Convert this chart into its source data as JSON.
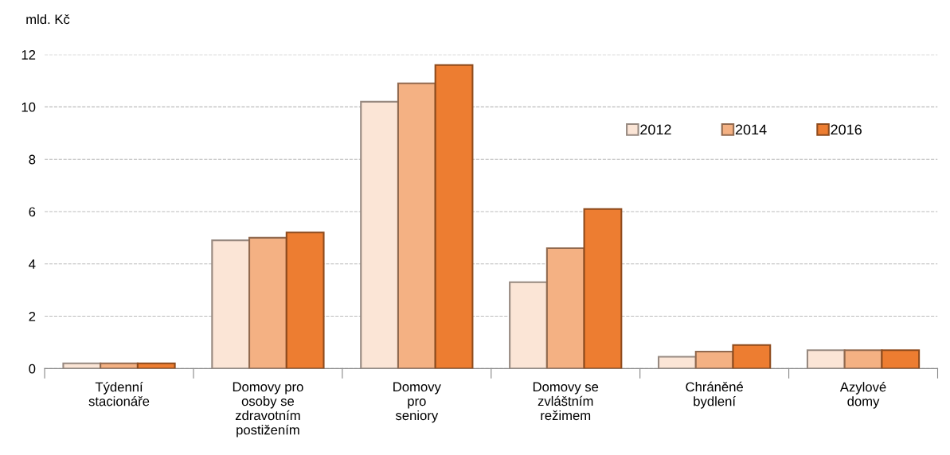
{
  "chart_data": {
    "type": "bar",
    "ylabel": "mld. Kč",
    "categories": [
      "Týdenní\nstacionáře",
      "Domovy pro\nosoby se\nzdravotním\npostižením",
      "Domovy\npro\nseniory",
      "Domovy se\nzvláštním\nrežimem",
      "Chráněné\nbydlení",
      "Azylové\ndomy"
    ],
    "series": [
      {
        "name": "2012",
        "color": "#fbe5d6",
        "values": [
          0.2,
          4.9,
          10.2,
          3.3,
          0.45,
          0.7
        ]
      },
      {
        "name": "2014",
        "color": "#f4b183",
        "values": [
          0.2,
          5.0,
          10.9,
          4.6,
          0.65,
          0.7
        ]
      },
      {
        "name": "2016",
        "color": "#ed7d31",
        "values": [
          0.2,
          5.2,
          11.6,
          6.1,
          0.9,
          0.7
        ]
      }
    ],
    "ylim": [
      0,
      12
    ],
    "yticks": [
      0,
      2,
      4,
      6,
      8,
      10,
      12
    ],
    "grid": "y",
    "legend": "top right"
  }
}
